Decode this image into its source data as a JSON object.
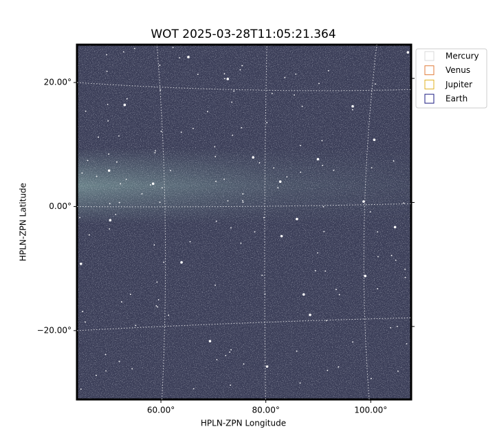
{
  "chart_data": {
    "type": "image",
    "title": "WOT 2025-03-28T11:05:21.364",
    "x_label": "HPLN-ZPN Longitude",
    "y_label": "HPLN-ZPN Latitude",
    "xlim": [
      44.0,
      107.7
    ],
    "ylim": [
      -31.1,
      26.1
    ],
    "xticks": [
      {
        "value": 60,
        "label": "60.00°"
      },
      {
        "value": 80,
        "label": "80.00°"
      },
      {
        "value": 100,
        "label": "100.00°"
      }
    ],
    "yticks": [
      {
        "value": -20,
        "label": "−20.00°"
      },
      {
        "value": 0,
        "label": "0.00°"
      },
      {
        "value": 20,
        "label": "20.00°"
      }
    ],
    "grid": true,
    "legend": "upper right",
    "series": [
      {
        "name": "Mercury",
        "color": "#d9d9d9"
      },
      {
        "name": "Venus",
        "color": "#e07b39"
      },
      {
        "name": "Jupiter",
        "color": "#e0b020"
      },
      {
        "name": "Earth",
        "color": "#1a1a80"
      }
    ]
  }
}
